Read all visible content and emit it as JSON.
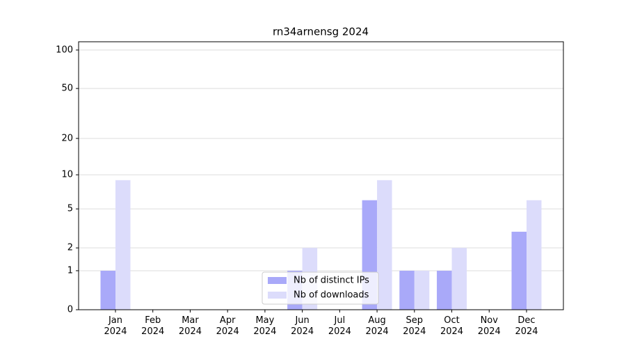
{
  "chart_data": {
    "type": "bar",
    "title": "rn34arnensg 2024",
    "categories": [
      "Jan\n2024",
      "Feb\n2024",
      "Mar\n2024",
      "Apr\n2024",
      "May\n2024",
      "Jun\n2024",
      "Jul\n2024",
      "Aug\n2024",
      "Sep\n2024",
      "Oct\n2024",
      "Nov\n2024",
      "Dec\n2024"
    ],
    "series": [
      {
        "name": "Nb of distinct IPs",
        "color": "#a9a9f9",
        "values": [
          1,
          0,
          0,
          0,
          0,
          1,
          0,
          6,
          1,
          1,
          0,
          3
        ]
      },
      {
        "name": "Nb of downloads",
        "color": "#dcdcfb",
        "values": [
          9,
          0,
          0,
          0,
          0,
          2,
          0,
          9,
          1,
          2,
          0,
          6
        ]
      }
    ],
    "yscale": "log1p",
    "ylim": [
      0,
      116
    ],
    "yticks": [
      0,
      1,
      2,
      5,
      10,
      20,
      50,
      100
    ],
    "grid": true,
    "legend": "lower center"
  }
}
